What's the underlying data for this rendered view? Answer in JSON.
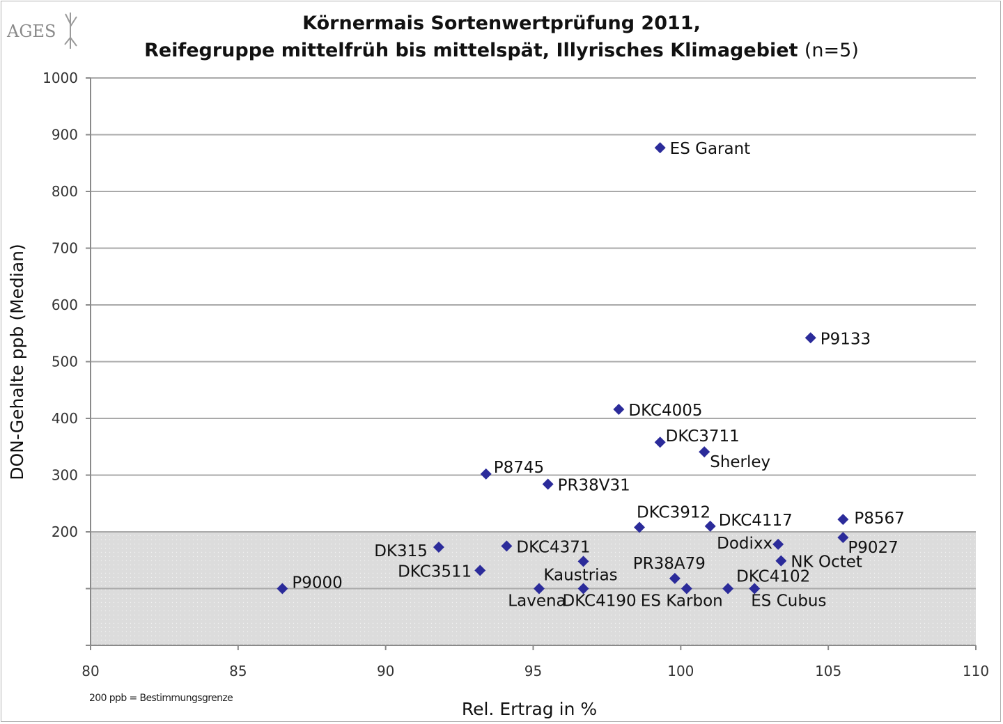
{
  "logo": {
    "text": "AGES"
  },
  "title": {
    "line1": "Körnermais Sortenwertprüfung 2011,",
    "line2_bold": "Reifegruppe mittelfrüh bis mittelspät, Illyrisches Klimagebiet",
    "line2_normal": "(n=5)"
  },
  "footnote": "200 ppb = Bestimmungsgrenze",
  "colors": {
    "marker": "#2b2b9a",
    "gridline": "#a9a9a9",
    "shaded_region": "#dcdcdc"
  },
  "chart_data": {
    "type": "scatter",
    "xlabel": "Rel. Ertrag in %",
    "ylabel": "DON-Gehalte ppb (Median)",
    "xlim": [
      80,
      110
    ],
    "ylim": [
      0,
      1000
    ],
    "x_ticks": [
      "80",
      "85",
      "90",
      "95",
      "100",
      "105",
      "110"
    ],
    "y_ticks": [
      "200",
      "300",
      "400",
      "500",
      "600",
      "700",
      "800",
      "900",
      "1000"
    ],
    "shaded_band": {
      "y_from": 0,
      "y_to": 200,
      "meaning": "200 ppb = Bestimmungsgrenze"
    },
    "grid": "horizontal",
    "points": [
      {
        "label": "ES Garant",
        "x": 99.3,
        "y": 877
      },
      {
        "label": "P9133",
        "x": 104.4,
        "y": 542
      },
      {
        "label": "DKC4005",
        "x": 97.9,
        "y": 416
      },
      {
        "label": "DKC3711",
        "x": 99.3,
        "y": 358
      },
      {
        "label": "Sherley",
        "x": 100.8,
        "y": 341
      },
      {
        "label": "P8745",
        "x": 93.4,
        "y": 302
      },
      {
        "label": "PR38V31",
        "x": 95.5,
        "y": 284
      },
      {
        "label": "DKC3912",
        "x": 98.6,
        "y": 208
      },
      {
        "label": "DKC4117",
        "x": 101.0,
        "y": 210
      },
      {
        "label": "P8567",
        "x": 105.5,
        "y": 222
      },
      {
        "label": "Dodixx",
        "x": 103.3,
        "y": 178
      },
      {
        "label": "P9027",
        "x": 105.5,
        "y": 190
      },
      {
        "label": "DK315",
        "x": 91.8,
        "y": 173
      },
      {
        "label": "DKC4371",
        "x": 94.1,
        "y": 175
      },
      {
        "label": "NK Octet",
        "x": 103.4,
        "y": 149
      },
      {
        "label": "Kaustrias",
        "x": 96.7,
        "y": 148
      },
      {
        "label": "PR38A79",
        "x": 99.8,
        "y": 118
      },
      {
        "label": "DKC3511",
        "x": 93.2,
        "y": 132
      },
      {
        "label": "DKC4102",
        "x": 101.6,
        "y": 100
      },
      {
        "label": "P9000",
        "x": 86.5,
        "y": 100
      },
      {
        "label": "Lavena",
        "x": 95.2,
        "y": 100
      },
      {
        "label": "DKC4190",
        "x": 96.7,
        "y": 100
      },
      {
        "label": "ES Karbon",
        "x": 100.2,
        "y": 100
      },
      {
        "label": "ES Cubus",
        "x": 102.5,
        "y": 100
      }
    ]
  }
}
